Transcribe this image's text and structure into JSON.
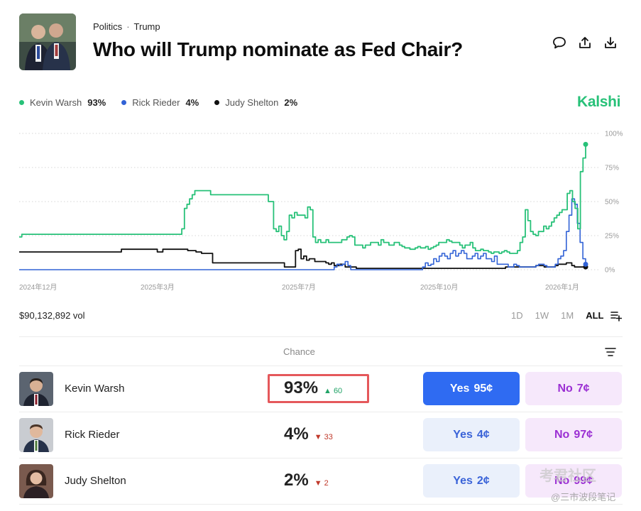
{
  "header": {
    "breadcrumb": [
      "Politics",
      "Trump"
    ],
    "breadcrumb_sep": "·",
    "title": "Who will Trump nominate as Fed Chair?",
    "actions": [
      "comment-icon",
      "share-icon",
      "download-icon"
    ]
  },
  "brand": "Kalshi",
  "legend": [
    {
      "name": "Kevin Warsh",
      "pct": "93%",
      "color": "#27c178"
    },
    {
      "name": "Rick Rieder",
      "pct": "4%",
      "color": "#3162d6"
    },
    {
      "name": "Judy Shelton",
      "pct": "2%",
      "color": "#111111"
    }
  ],
  "chart_data": {
    "type": "line",
    "y_ticks": [
      "100%",
      "75%",
      "50%",
      "25%",
      "0%"
    ],
    "x_ticks": [
      "2024年12月",
      "2025年3月",
      "2025年7月",
      "2025年10月",
      "2026年1月"
    ],
    "ylim": [
      0,
      100
    ],
    "series": [
      {
        "name": "Kevin Warsh",
        "color": "#27c178",
        "values": [
          24,
          26,
          26,
          26,
          26,
          26,
          26,
          26,
          26,
          26,
          26,
          26,
          26,
          26,
          26,
          26,
          26,
          26,
          26,
          26,
          26,
          26,
          26,
          26,
          26,
          26,
          26,
          26,
          26,
          26,
          26,
          26,
          26,
          26,
          26,
          26,
          26,
          26,
          26,
          26,
          26,
          26,
          26,
          26,
          26,
          26,
          26,
          26,
          26,
          26,
          26,
          26,
          26,
          26,
          26,
          26,
          26,
          26,
          26,
          26,
          26,
          26,
          30,
          45,
          48,
          52,
          55,
          58,
          58,
          58,
          58,
          58,
          58,
          55,
          55,
          55,
          55,
          55,
          55,
          55,
          55,
          55,
          55,
          55,
          55,
          55,
          55,
          55,
          55,
          55,
          55,
          55,
          55,
          55,
          55,
          50,
          50,
          30,
          28,
          32,
          25,
          22,
          28,
          40,
          38,
          42,
          40,
          40,
          40,
          38,
          46,
          44,
          24,
          20,
          22,
          20,
          20,
          22,
          20,
          20,
          20,
          20,
          20,
          22,
          22,
          24,
          25,
          24,
          18,
          18,
          18,
          16,
          18,
          18,
          20,
          20,
          20,
          18,
          22,
          20,
          20,
          18,
          18,
          20,
          20,
          18,
          17,
          16,
          16,
          15,
          15,
          16,
          17,
          16,
          16,
          17,
          15,
          16,
          17,
          18,
          20,
          20,
          20,
          22,
          21,
          20,
          20,
          20,
          18,
          16,
          18,
          18,
          20,
          16,
          14,
          14,
          15,
          14,
          14,
          13,
          12,
          13,
          13,
          12,
          13,
          14,
          13,
          12,
          12,
          12,
          14,
          20,
          24,
          44,
          36,
          28,
          26,
          25,
          28,
          28,
          32,
          30,
          32,
          35,
          38,
          40,
          42,
          44,
          44,
          56,
          58,
          50,
          45,
          30,
          72,
          82,
          92
        ]
      },
      {
        "name": "Rick Rieder",
        "color": "#3162d6",
        "values": [
          0,
          0,
          0,
          0,
          0,
          0,
          0,
          0,
          0,
          0,
          0,
          0,
          0,
          0,
          0,
          0,
          0,
          0,
          0,
          0,
          0,
          0,
          0,
          0,
          0,
          0,
          0,
          0,
          0,
          0,
          0,
          0,
          0,
          0,
          0,
          0,
          0,
          0,
          0,
          0,
          0,
          0,
          0,
          0,
          0,
          0,
          0,
          0,
          0,
          0,
          0,
          0,
          0,
          0,
          0,
          0,
          0,
          0,
          0,
          0,
          0,
          0,
          0,
          0,
          0,
          0,
          0,
          0,
          0,
          0,
          0,
          0,
          0,
          0,
          0,
          0,
          0,
          0,
          0,
          0,
          0,
          0,
          0,
          0,
          0,
          0,
          0,
          0,
          0,
          0,
          0,
          0,
          0,
          0,
          0,
          0,
          0,
          0,
          0,
          0,
          0,
          0,
          0,
          0,
          0,
          0,
          0,
          0,
          0,
          0,
          0,
          0,
          0,
          0,
          2,
          4,
          3,
          4,
          6,
          3,
          0,
          0,
          0,
          0,
          0,
          0,
          0,
          0,
          0,
          0,
          0,
          0,
          0,
          0,
          0,
          0,
          0,
          0,
          0,
          0,
          0,
          0,
          0,
          0,
          0,
          0,
          2,
          5,
          3,
          4,
          8,
          6,
          10,
          12,
          10,
          8,
          12,
          14,
          10,
          12,
          14,
          12,
          8,
          8,
          10,
          12,
          8,
          10,
          12,
          8,
          8,
          6,
          10,
          4,
          4,
          4,
          4,
          2,
          2,
          4,
          3,
          2,
          2,
          2,
          2,
          2,
          2,
          3,
          4,
          4,
          3,
          2,
          2,
          2,
          4,
          8,
          10,
          14,
          28,
          40,
          52,
          48,
          34,
          20,
          8,
          4
        ]
      },
      {
        "name": "Judy Shelton",
        "color": "#111111",
        "values": [
          13,
          13,
          13,
          13,
          13,
          13,
          13,
          13,
          13,
          13,
          13,
          13,
          13,
          13,
          13,
          13,
          13,
          13,
          13,
          13,
          13,
          13,
          13,
          13,
          13,
          13,
          13,
          13,
          13,
          13,
          13,
          13,
          13,
          13,
          13,
          13,
          13,
          15,
          15,
          15,
          15,
          15,
          15,
          15,
          15,
          15,
          15,
          15,
          15,
          15,
          13,
          13,
          15,
          15,
          15,
          15,
          15,
          15,
          15,
          15,
          15,
          14,
          14,
          14,
          13,
          13,
          12,
          12,
          12,
          12,
          5,
          5,
          5,
          5,
          5,
          5,
          5,
          5,
          5,
          5,
          5,
          5,
          5,
          5,
          5,
          5,
          5,
          5,
          5,
          5,
          5,
          5,
          5,
          5,
          5,
          5,
          2,
          2,
          2,
          2,
          14,
          15,
          8,
          10,
          7,
          8,
          8,
          6,
          6,
          6,
          6,
          5,
          4,
          5,
          3,
          3,
          4,
          4,
          2,
          2,
          2,
          2,
          1,
          1,
          1,
          1,
          1,
          1,
          1,
          1,
          1,
          1,
          1,
          1,
          1,
          1,
          1,
          1,
          1,
          1,
          1,
          1,
          1,
          1,
          1,
          1,
          1,
          1,
          1,
          1,
          1,
          1,
          1,
          1,
          1,
          1,
          1,
          1,
          1,
          1,
          1,
          1,
          1,
          1,
          1,
          1,
          1,
          1,
          1,
          1,
          1,
          1,
          1,
          1,
          1,
          1,
          2,
          2,
          2,
          2,
          2,
          2,
          2,
          2,
          2,
          2,
          2,
          3,
          3,
          3,
          2,
          2,
          2,
          2,
          3,
          4,
          4,
          4,
          5,
          5,
          3,
          2,
          2,
          2,
          2,
          2
        ]
      }
    ]
  },
  "volume": "$90,132,892 vol",
  "ranges": [
    "1D",
    "1W",
    "1M",
    "ALL"
  ],
  "table": {
    "chance_header": "Chance",
    "rows": [
      {
        "name": "Kevin Warsh",
        "chance": "93%",
        "delta": "60",
        "dir": "up",
        "yes_label": "Yes",
        "yes_price": "95¢",
        "no_label": "No",
        "no_price": "7¢"
      },
      {
        "name": "Rick Rieder",
        "chance": "4%",
        "delta": "33",
        "dir": "down",
        "yes_label": "Yes",
        "yes_price": "4¢",
        "no_label": "No",
        "no_price": "97¢"
      },
      {
        "name": "Judy Shelton",
        "chance": "2%",
        "delta": "2",
        "dir": "down",
        "yes_label": "Yes",
        "yes_price": "2¢",
        "no_label": "No",
        "no_price": "99¢"
      }
    ]
  },
  "watermark": {
    "line1": "考君社区",
    "line2": "@三市波段笔记"
  }
}
